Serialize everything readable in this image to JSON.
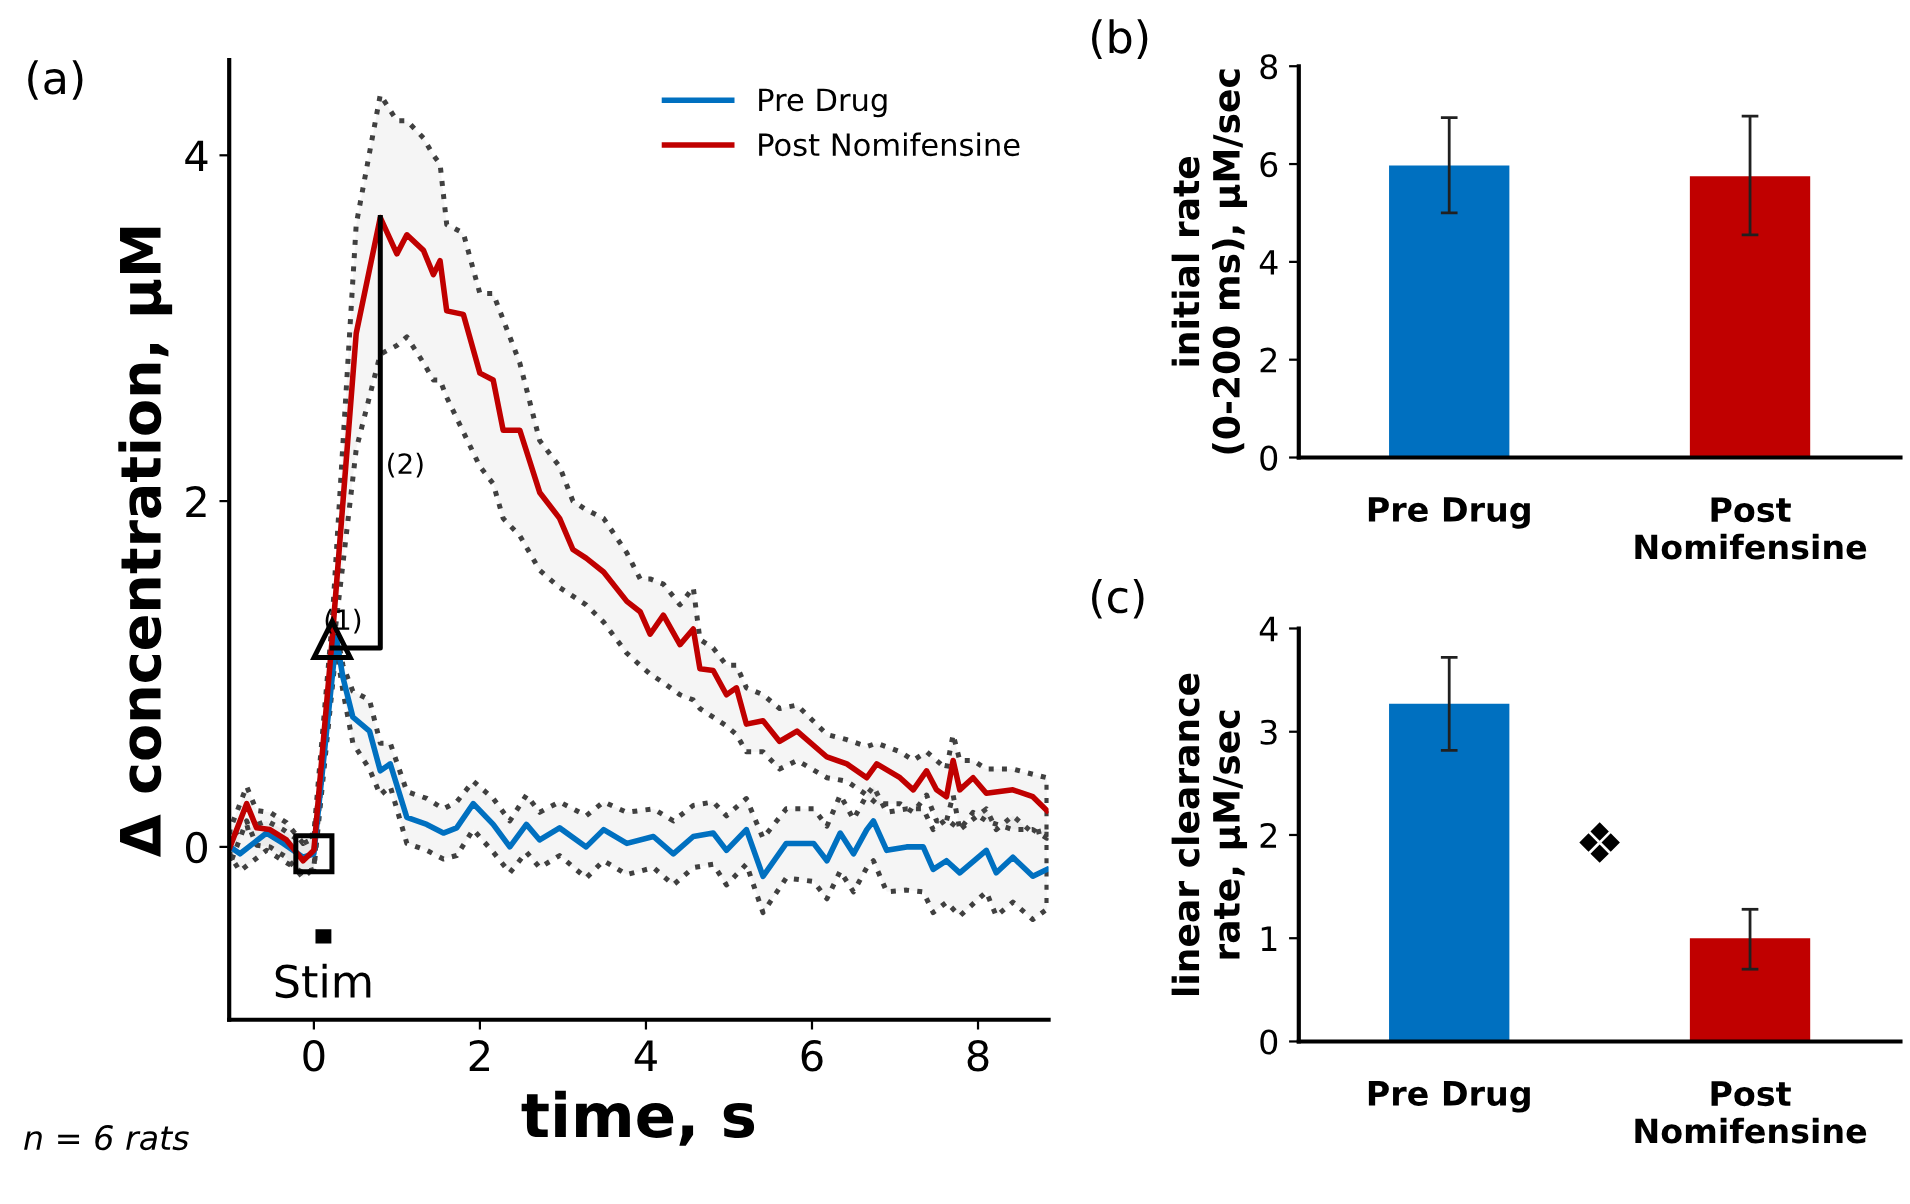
{
  "chart_data": [
    {
      "type": "line",
      "title": "(a)",
      "xlabel": "time, s",
      "ylabel": "Δ concentration, μM",
      "xlim": [
        -1.02,
        8.85
      ],
      "ylim": [
        -1,
        4.55
      ],
      "xticks": [
        0,
        2,
        4,
        6,
        8
      ],
      "yticks": [
        0,
        2,
        4
      ],
      "grid": false,
      "legend": "top right",
      "line_style": "solid",
      "annotations": [
        {
          "text": "(1)",
          "x": 0.35,
          "y": 1.3
        },
        "(2)",
        "Stim",
        "n = 6 rats"
      ],
      "series": [
        {
          "name": "Pre Drug",
          "color": "#0070c0",
          "x": [
            -1.01,
            -0.89,
            -0.73,
            -0.57,
            -0.37,
            -0.13,
            0,
            0.27,
            0.35,
            0.47,
            0.67,
            0.8,
            0.92,
            1.12,
            1.36,
            1.56,
            1.72,
            1.92,
            2.16,
            2.36,
            2.56,
            2.72,
            2.96,
            3.28,
            3.49,
            3.77,
            4.09,
            4.33,
            4.57,
            4.81,
            4.97,
            5.21,
            5.41,
            5.69,
            6.02,
            6.18,
            6.34,
            6.5,
            6.66,
            6.74,
            6.9,
            7.14,
            7.34,
            7.46,
            7.62,
            7.78,
            8.1,
            8.22,
            8.42,
            8.66,
            8.83
          ],
          "values": [
            0,
            -0.04,
            0.02,
            0.08,
            0.02,
            -0.06,
            -0.04,
            1.21,
            0.98,
            0.75,
            0.67,
            0.44,
            0.48,
            0.17,
            0.13,
            0.08,
            0.11,
            0.25,
            0.13,
            0,
            0.13,
            0.04,
            0.11,
            0,
            0.1,
            0.02,
            0.06,
            -0.04,
            0.06,
            0.08,
            -0.02,
            0.1,
            -0.17,
            0.02,
            0.02,
            -0.08,
            0.08,
            -0.04,
            0.1,
            0.15,
            -0.02,
            0,
            0,
            -0.13,
            -0.08,
            -0.15,
            -0.02,
            -0.15,
            -0.06,
            -0.17,
            -0.13
          ],
          "upper": [
            0.05,
            0.1,
            0.12,
            0.15,
            0.1,
            0.02,
            0.05,
            1.25,
            1.05,
            0.9,
            0.85,
            0.6,
            0.6,
            0.32,
            0.28,
            0.22,
            0.26,
            0.38,
            0.28,
            0.15,
            0.3,
            0.2,
            0.26,
            0.18,
            0.26,
            0.2,
            0.22,
            0.15,
            0.24,
            0.26,
            0.18,
            0.28,
            0.05,
            0.22,
            0.22,
            0.12,
            0.3,
            0.16,
            0.3,
            0.35,
            0.2,
            0.22,
            0.22,
            0.1,
            0.16,
            0.1,
            0.22,
            0.1,
            0.18,
            0.08,
            0.1
          ],
          "lower": [
            -0.05,
            -0.14,
            -0.08,
            -0.02,
            -0.08,
            -0.15,
            -0.13,
            1.15,
            0.9,
            0.6,
            0.45,
            0.3,
            0.35,
            0.02,
            -0.02,
            -0.07,
            -0.05,
            0.1,
            -0.03,
            -0.15,
            -0.03,
            -0.12,
            -0.05,
            -0.18,
            -0.08,
            -0.16,
            -0.12,
            -0.22,
            -0.12,
            -0.1,
            -0.22,
            -0.1,
            -0.38,
            -0.18,
            -0.2,
            -0.3,
            -0.14,
            -0.26,
            -0.12,
            -0.08,
            -0.26,
            -0.25,
            -0.26,
            -0.38,
            -0.32,
            -0.4,
            -0.26,
            -0.4,
            -0.32,
            -0.42,
            -0.36
          ]
        },
        {
          "name": "Post Nomifensine",
          "color": "#c00000",
          "x": [
            -1.01,
            -0.81,
            -0.69,
            -0.53,
            -0.33,
            -0.13,
            0,
            0.22,
            0.51,
            0.8,
            1.0,
            1.12,
            1.32,
            1.44,
            1.52,
            1.6,
            1.8,
            2.0,
            2.16,
            2.28,
            2.48,
            2.72,
            2.96,
            3.12,
            3.28,
            3.49,
            3.77,
            3.93,
            4.05,
            4.21,
            4.41,
            4.57,
            4.65,
            4.81,
            4.97,
            5.09,
            5.21,
            5.41,
            5.61,
            5.82,
            6.18,
            6.42,
            6.66,
            6.78,
            7.06,
            7.22,
            7.38,
            7.5,
            7.62,
            7.7,
            7.78,
            7.94,
            8.1,
            8.42,
            8.66,
            8.83
          ],
          "values": [
            0,
            0.25,
            0.11,
            0.1,
            0.04,
            -0.08,
            -0.02,
            1.2,
            2.97,
            3.64,
            3.43,
            3.54,
            3.45,
            3.31,
            3.39,
            3.1,
            3.08,
            2.74,
            2.7,
            2.41,
            2.41,
            2.05,
            1.9,
            1.72,
            1.67,
            1.59,
            1.42,
            1.36,
            1.23,
            1.34,
            1.17,
            1.26,
            1.03,
            1.02,
            0.88,
            0.92,
            0.71,
            0.73,
            0.61,
            0.67,
            0.52,
            0.48,
            0.4,
            0.48,
            0.4,
            0.33,
            0.44,
            0.33,
            0.29,
            0.5,
            0.33,
            0.4,
            0.31,
            0.33,
            0.29,
            0.21
          ],
          "upper": [
            0.1,
            0.35,
            0.21,
            0.2,
            0.14,
            0.02,
            0.08,
            1.3,
            3.6,
            4.35,
            4.2,
            4.2,
            4.1,
            4.0,
            3.95,
            3.6,
            3.55,
            3.2,
            3.2,
            3.05,
            2.8,
            2.35,
            2.2,
            2.0,
            1.95,
            1.9,
            1.7,
            1.55,
            1.55,
            1.52,
            1.4,
            1.5,
            1.2,
            1.15,
            1.05,
            1.05,
            0.92,
            0.88,
            0.8,
            0.82,
            0.65,
            0.62,
            0.58,
            0.6,
            0.55,
            0.5,
            0.55,
            0.5,
            0.45,
            0.65,
            0.5,
            0.5,
            0.45,
            0.45,
            0.42,
            0.4
          ],
          "lower": [
            -0.1,
            0.15,
            0.01,
            0,
            -0.06,
            -0.18,
            -0.12,
            1.1,
            2.3,
            2.85,
            2.9,
            2.95,
            2.8,
            2.7,
            2.7,
            2.6,
            2.4,
            2.2,
            2.1,
            1.9,
            1.8,
            1.6,
            1.5,
            1.45,
            1.4,
            1.3,
            1.12,
            1.05,
            1.0,
            0.95,
            0.88,
            0.85,
            0.8,
            0.75,
            0.7,
            0.65,
            0.55,
            0.55,
            0.45,
            0.5,
            0.4,
            0.38,
            0.3,
            0.25,
            0.25,
            0.2,
            0.3,
            0.15,
            0.15,
            0.3,
            0.1,
            0.2,
            0.15,
            0.1,
            0.1,
            0.05
          ]
        }
      ]
    },
    {
      "type": "bar",
      "title": "(b)",
      "ylabel": "initial rate\n(0-200 ms), μM/sec",
      "categories": [
        "Pre Drug",
        "Post\nNomifensine"
      ],
      "values": [
        5.97,
        5.75
      ],
      "colors": [
        "#0070c0",
        "#c00000"
      ],
      "errors": [
        [
          5.0,
          6.95
        ],
        [
          4.55,
          6.98
        ]
      ],
      "ylim": [
        0,
        8
      ],
      "yticks": [
        0,
        2,
        4,
        6,
        8
      ],
      "grid": false,
      "legend": false
    },
    {
      "type": "bar",
      "title": "(c)",
      "ylabel": "linear clearance\nrate, μM/sec",
      "categories": [
        "Pre Drug",
        "Post\nNomifensine"
      ],
      "values": [
        3.27,
        1.0
      ],
      "colors": [
        "#0070c0",
        "#c00000"
      ],
      "errors": [
        [
          2.82,
          3.72
        ],
        [
          0.7,
          1.28
        ]
      ],
      "ylim": [
        0,
        4
      ],
      "yticks": [
        0,
        1,
        2,
        3,
        4
      ],
      "grid": false,
      "legend": false,
      "annotations": [
        "❖"
      ]
    }
  ]
}
